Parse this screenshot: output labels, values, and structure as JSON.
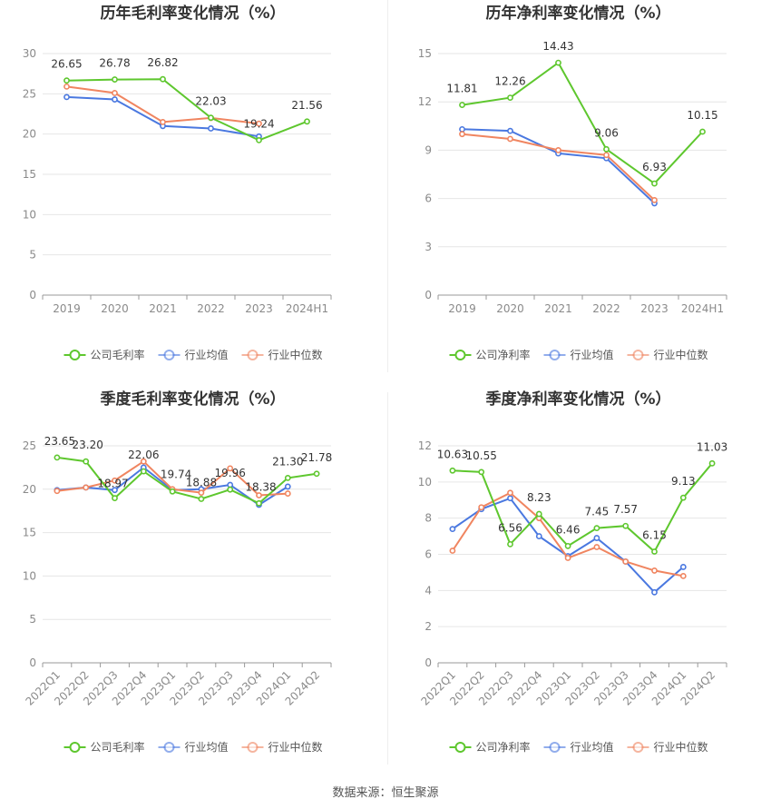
{
  "source": "数据来源：恒生聚源",
  "colors": {
    "company": "#5ec72e",
    "avg": "#4a78e0",
    "median": "#f08560",
    "grid": "#e6e6e6",
    "axis": "#999999"
  },
  "chart_data": [
    {
      "type": "line",
      "title": "历年毛利率变化情况（%）",
      "categories": [
        "2019",
        "2020",
        "2021",
        "2022",
        "2023",
        "2024H1"
      ],
      "ylim": [
        0,
        30
      ],
      "yticks": [
        0,
        5,
        10,
        15,
        20,
        25,
        30
      ],
      "grid": true,
      "legend": "bottom",
      "series": [
        {
          "name": "公司毛利率",
          "color": "#5ec72e",
          "values": [
            26.65,
            26.78,
            26.82,
            22.03,
            19.24,
            21.56
          ],
          "labels": [
            "26.65",
            "26.78",
            "26.82",
            "22.03",
            "19.24",
            "21.56"
          ]
        },
        {
          "name": "行业均值",
          "color": "#4a78e0",
          "values": [
            24.6,
            24.3,
            21.0,
            20.7,
            19.7,
            null
          ]
        },
        {
          "name": "行业中位数",
          "color": "#f08560",
          "values": [
            25.9,
            25.1,
            21.5,
            22.0,
            21.3,
            null
          ]
        }
      ]
    },
    {
      "type": "line",
      "title": "历年净利率变化情况（%）",
      "categories": [
        "2019",
        "2020",
        "2021",
        "2022",
        "2023",
        "2024H1"
      ],
      "ylim": [
        0,
        15
      ],
      "yticks": [
        0,
        3,
        6,
        9,
        12,
        15
      ],
      "grid": true,
      "legend": "bottom",
      "series": [
        {
          "name": "公司净利率",
          "color": "#5ec72e",
          "values": [
            11.81,
            12.26,
            14.43,
            9.06,
            6.93,
            10.15
          ],
          "labels": [
            "11.81",
            "12.26",
            "14.43",
            "9.06",
            "6.93",
            "10.15"
          ]
        },
        {
          "name": "行业均值",
          "color": "#4a78e0",
          "values": [
            10.3,
            10.2,
            8.8,
            8.5,
            5.7,
            null
          ]
        },
        {
          "name": "行业中位数",
          "color": "#f08560",
          "values": [
            10.0,
            9.7,
            9.0,
            8.7,
            5.9,
            null
          ]
        }
      ]
    },
    {
      "type": "line",
      "title": "季度毛利率变化情况（%）",
      "categories": [
        "2022Q1",
        "2022Q2",
        "2022Q3",
        "2022Q4",
        "2023Q1",
        "2023Q2",
        "2023Q3",
        "2023Q4",
        "2024Q1",
        "2024Q2"
      ],
      "ylim": [
        0,
        25
      ],
      "yticks": [
        0,
        5,
        10,
        15,
        20,
        25
      ],
      "grid": true,
      "legend": "bottom",
      "series": [
        {
          "name": "公司毛利率",
          "color": "#5ec72e",
          "values": [
            23.65,
            23.2,
            18.97,
            22.06,
            19.74,
            18.88,
            19.96,
            18.38,
            21.3,
            21.78
          ],
          "labels": [
            "23.65",
            "23.20",
            "18.97",
            "22.06",
            "19.74",
            "18.88",
            "19.96",
            "18.38",
            "21.30",
            "21.78"
          ]
        },
        {
          "name": "行业均值",
          "color": "#4a78e0",
          "values": [
            19.9,
            20.2,
            19.9,
            22.5,
            19.9,
            20.0,
            20.5,
            18.2,
            20.3,
            null
          ]
        },
        {
          "name": "行业中位数",
          "color": "#f08560",
          "values": [
            19.8,
            20.2,
            21.0,
            23.2,
            20.0,
            19.6,
            22.4,
            19.3,
            19.5,
            null
          ]
        }
      ]
    },
    {
      "type": "line",
      "title": "季度净利率变化情况（%）",
      "categories": [
        "2022Q1",
        "2022Q2",
        "2022Q3",
        "2022Q4",
        "2023Q1",
        "2023Q2",
        "2023Q3",
        "2023Q4",
        "2024Q1",
        "2024Q2"
      ],
      "ylim": [
        0,
        12
      ],
      "yticks": [
        0,
        2,
        4,
        6,
        8,
        10,
        12
      ],
      "grid": true,
      "legend": "bottom",
      "series": [
        {
          "name": "公司净利率",
          "color": "#5ec72e",
          "values": [
            10.63,
            10.55,
            6.56,
            8.23,
            6.46,
            7.45,
            7.57,
            6.15,
            9.13,
            11.03
          ],
          "labels": [
            "10.63",
            "10.55",
            "6.56",
            "8.23",
            "6.46",
            "7.45",
            "7.57",
            "6.15",
            "9.13",
            "11.03"
          ]
        },
        {
          "name": "行业均值",
          "color": "#4a78e0",
          "values": [
            7.4,
            8.5,
            9.1,
            7.0,
            5.9,
            6.9,
            5.6,
            3.9,
            5.3,
            null
          ]
        },
        {
          "name": "行业中位数",
          "color": "#f08560",
          "values": [
            6.2,
            8.6,
            9.4,
            8.0,
            5.8,
            6.4,
            5.6,
            5.1,
            4.8,
            null
          ]
        }
      ]
    }
  ]
}
